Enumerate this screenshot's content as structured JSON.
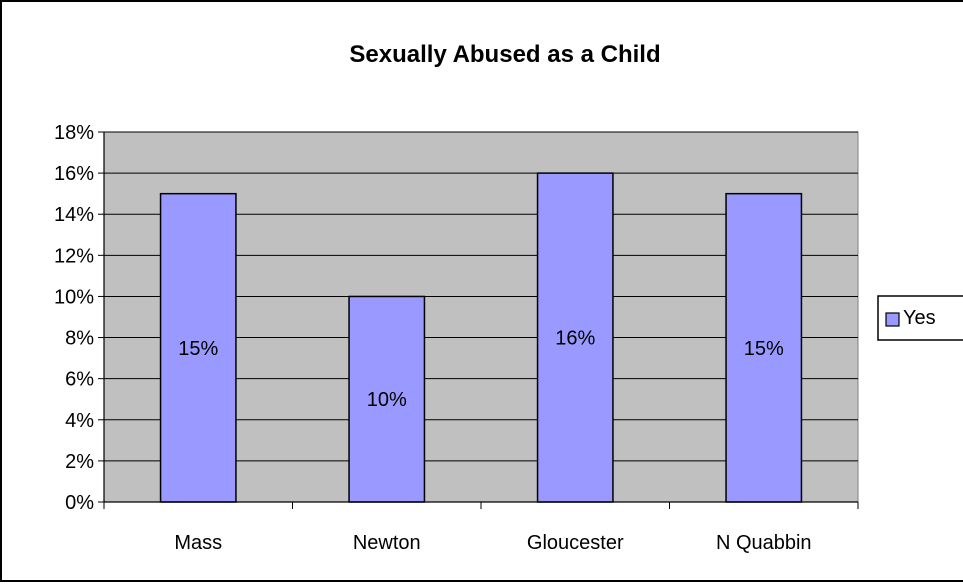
{
  "chart_data": {
    "type": "bar",
    "title": "Sexually Abused as a Child",
    "categories": [
      "Mass",
      "Newton",
      "Gloucester",
      "N Quabbin"
    ],
    "series": [
      {
        "name": "Yes",
        "values": [
          15,
          10,
          16,
          15
        ],
        "color": "#9999ff"
      }
    ],
    "data_labels": [
      "15%",
      "10%",
      "16%",
      "15%"
    ],
    "ylim": [
      0,
      18
    ],
    "y_ticks": [
      "0%",
      "2%",
      "4%",
      "6%",
      "8%",
      "10%",
      "12%",
      "14%",
      "16%",
      "18%"
    ],
    "xlabel": "",
    "ylabel": "",
    "grid": true,
    "plot_background": "#c0c0c0",
    "legend_position": "right"
  }
}
